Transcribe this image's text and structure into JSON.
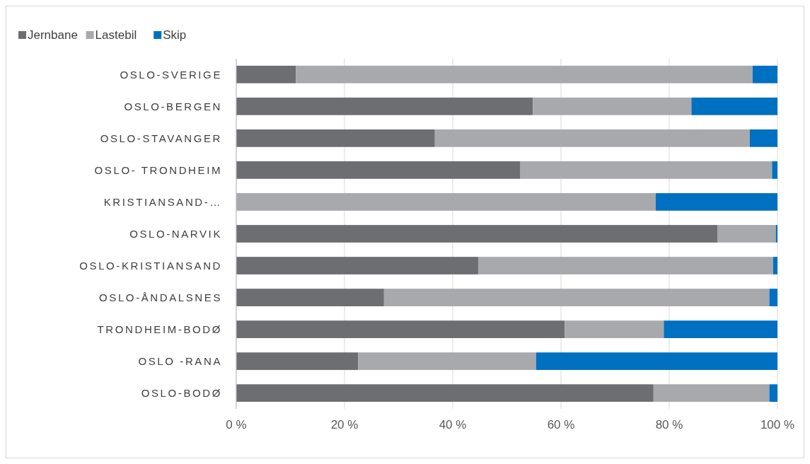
{
  "chart_data": {
    "type": "bar",
    "orientation": "horizontal",
    "stacked": true,
    "categories": [
      "OSLO-SVERIGE",
      "OSLO-BERGEN",
      "OSLO-STAVANGER",
      "OSLO- TRONDHEIM",
      "KRISTIANSAND-…",
      "OSLO-NARVIK",
      "OSLO-KRISTIANSAND",
      "OSLO-ÅNDALSNES",
      "TRONDHEIM-BODØ",
      "OSLO -RANA",
      "OSLO-BODØ"
    ],
    "series": [
      {
        "name": "Jernbane",
        "color": "#6d6e71",
        "values": [
          11,
          54.8,
          36.7,
          52.5,
          0,
          88.9,
          44.7,
          27.3,
          60.7,
          22.5,
          77.1
        ]
      },
      {
        "name": "Lastebil",
        "color": "#a7a9ac",
        "values": [
          84.4,
          29.3,
          58.2,
          46.5,
          77.5,
          10.8,
          54.5,
          71.2,
          18.3,
          32.9,
          21.4
        ]
      },
      {
        "name": "Skip",
        "color": "#0070c0",
        "values": [
          4.6,
          15.9,
          5.1,
          1,
          22.5,
          0.3,
          0.8,
          1.5,
          21,
          44.6,
          1.5
        ]
      }
    ],
    "xlim": [
      0,
      100
    ],
    "xticks": [
      {
        "value": 0,
        "label": "0 %"
      },
      {
        "value": 20,
        "label": "20 %"
      },
      {
        "value": 40,
        "label": "40 %"
      },
      {
        "value": 60,
        "label": "60 %"
      },
      {
        "value": 80,
        "label": "80 %"
      },
      {
        "value": 100,
        "label": "100 %"
      }
    ],
    "grid": "x",
    "legend": "top left"
  }
}
